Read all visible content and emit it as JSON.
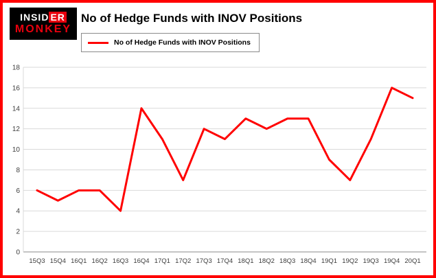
{
  "brand": {
    "line1a": "INSID",
    "line1b": "ER",
    "line2": "MONKEY"
  },
  "header": {
    "title": "No of Hedge Funds with INOV Positions"
  },
  "legend": {
    "label": "No of Hedge Funds with INOV Positions",
    "swatch_color": "#ff0000"
  },
  "chart_data": {
    "type": "line",
    "title": "No of Hedge Funds with INOV Positions",
    "categories": [
      "15Q3",
      "15Q4",
      "16Q1",
      "16Q2",
      "16Q3",
      "16Q4",
      "17Q1",
      "17Q2",
      "17Q3",
      "17Q4",
      "18Q1",
      "18Q2",
      "18Q3",
      "18Q4",
      "19Q1",
      "19Q2",
      "19Q3",
      "19Q4",
      "20Q1"
    ],
    "series": [
      {
        "name": "No of Hedge Funds with INOV Positions",
        "values": [
          6,
          5,
          6,
          6,
          4,
          14,
          11,
          7,
          12,
          11,
          13,
          12,
          13,
          13,
          9,
          7,
          11,
          16,
          15
        ]
      }
    ],
    "xlabel": "",
    "ylabel": "",
    "ylim": [
      0,
      18
    ],
    "yticks": [
      0,
      2,
      4,
      6,
      8,
      10,
      12,
      14,
      16,
      18
    ],
    "grid": true,
    "legend_position": "top-left",
    "line_color": "#ff0000"
  },
  "colors": {
    "frame_border": "#ff0000",
    "line": "#ff0000",
    "grid": "#d9d9d9",
    "axis": "#888888",
    "tick_text": "#3c3c3c",
    "logo_bg": "#000000",
    "logo_red": "#e8000d"
  }
}
